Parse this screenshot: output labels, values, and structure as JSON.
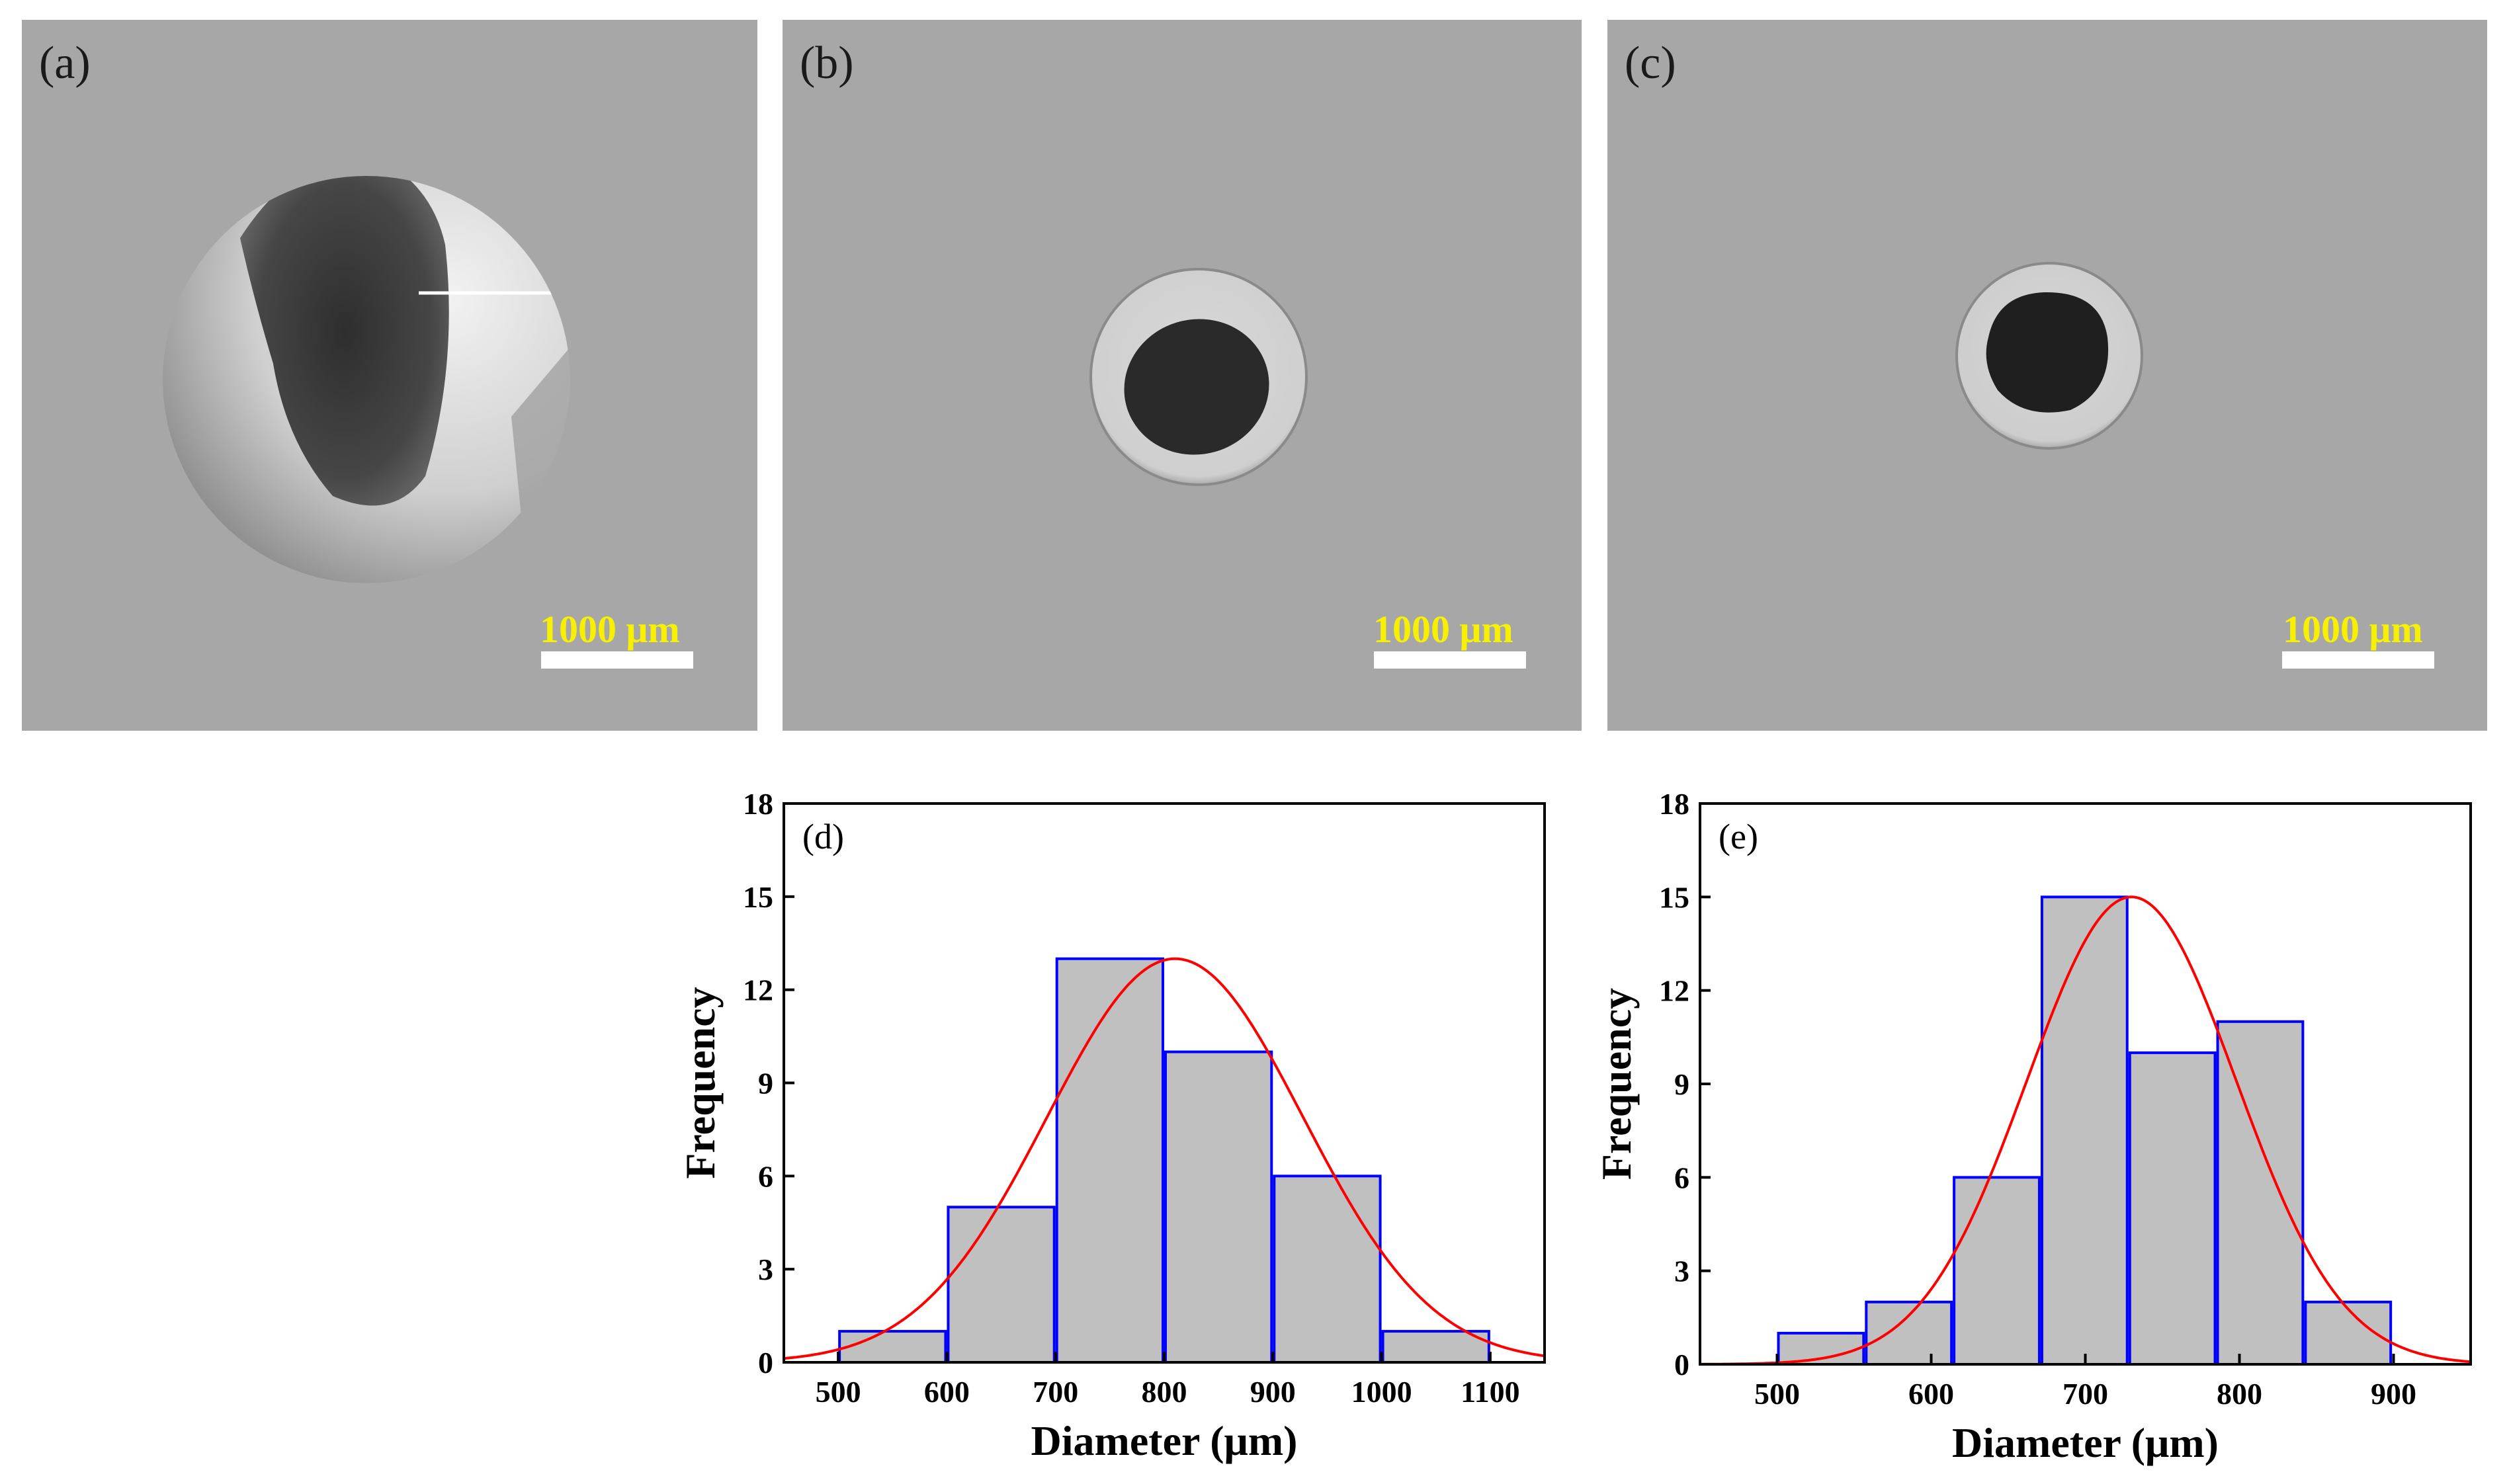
{
  "panels": [
    {
      "label": "(a)",
      "scale_label": "1000  μm"
    },
    {
      "label": "(b)",
      "scale_label": "1000  μm"
    },
    {
      "label": "(c)",
      "scale_label": "1000  μm"
    }
  ],
  "colors": {
    "bar_fill": "#c0c0c0",
    "bar_edge": "#0000ff",
    "fit_line": "#ff0000",
    "panel_bg": "#a7a7a7",
    "scale_text": "#f7f000"
  },
  "chart_data": [
    {
      "type": "bar",
      "panel_label": "(d)",
      "xlabel": "Diameter (μm)",
      "ylabel": "Frequency",
      "xlim": [
        450,
        1150
      ],
      "ylim": [
        0,
        18
      ],
      "xticks": [
        500,
        600,
        700,
        800,
        900,
        1000,
        1100
      ],
      "yticks": [
        0,
        3,
        6,
        9,
        12,
        15,
        18
      ],
      "bins": [
        {
          "from": 500,
          "to": 600,
          "count": 1
        },
        {
          "from": 600,
          "to": 700,
          "count": 5
        },
        {
          "from": 700,
          "to": 800,
          "count": 13
        },
        {
          "from": 800,
          "to": 900,
          "count": 10
        },
        {
          "from": 900,
          "to": 1000,
          "count": 6
        },
        {
          "from": 1000,
          "to": 1100,
          "count": 1
        }
      ],
      "fit": {
        "type": "gaussian",
        "mean": 810,
        "sigma": 118,
        "peak": 13
      }
    },
    {
      "type": "bar",
      "panel_label": "(e)",
      "xlabel": "Diameter (μm)",
      "ylabel": "Frequency",
      "xlim": [
        450,
        950
      ],
      "ylim": [
        0,
        18
      ],
      "xticks": [
        500,
        600,
        700,
        800,
        900
      ],
      "yticks": [
        0,
        3,
        6,
        9,
        12,
        15,
        18
      ],
      "bins": [
        {
          "from": 500,
          "to": 557,
          "count": 1
        },
        {
          "from": 557,
          "to": 614,
          "count": 2
        },
        {
          "from": 614,
          "to": 671,
          "count": 6
        },
        {
          "from": 671,
          "to": 728,
          "count": 15
        },
        {
          "from": 728,
          "to": 785,
          "count": 10
        },
        {
          "from": 785,
          "to": 842,
          "count": 11
        },
        {
          "from": 842,
          "to": 899,
          "count": 2
        }
      ],
      "fit": {
        "type": "gaussian",
        "mean": 730,
        "sigma": 68,
        "peak": 15
      }
    }
  ]
}
